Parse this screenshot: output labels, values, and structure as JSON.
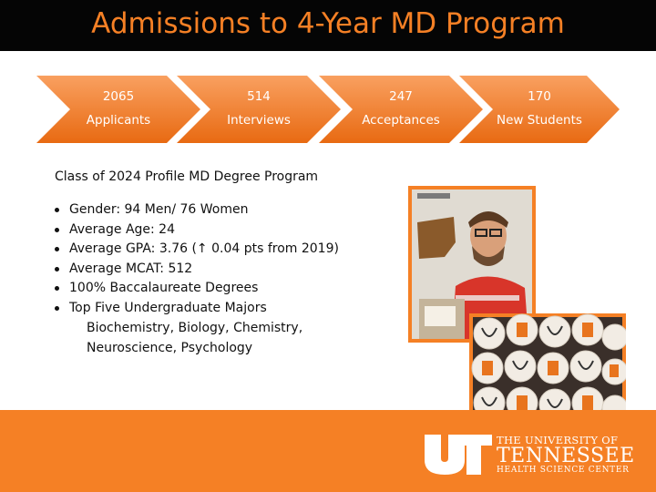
{
  "title": "Admissions to 4-Year MD Program",
  "colors": {
    "accent": "#f58025",
    "title_bar": "#050505"
  },
  "funnel": [
    {
      "number": "2065",
      "label": "Applicants"
    },
    {
      "number": "514",
      "label": "Interviews"
    },
    {
      "number": "247",
      "label": "Acceptances"
    },
    {
      "number": "170",
      "label": "New Students"
    }
  ],
  "profile": {
    "heading": "Class of 2024 Profile MD Degree Program",
    "bullets": [
      "Gender: 94 Men/ 76 Women",
      "Average Age: 24",
      "Average GPA: 3.76 (↑ 0.04 pts from 2019)",
      "Average MCAT: 512",
      "100% Baccalaureate Degrees",
      "Top Five Undergraduate Majors"
    ],
    "majors_line1": "Biochemistry, Biology, Chemistry,",
    "majors_line2": "Neuroscience, Psychology"
  },
  "footer": {
    "line1": "THE UNIVERSITY OF",
    "line2": "TENNESSEE",
    "line3": "HEALTH SCIENCE CENTER"
  }
}
